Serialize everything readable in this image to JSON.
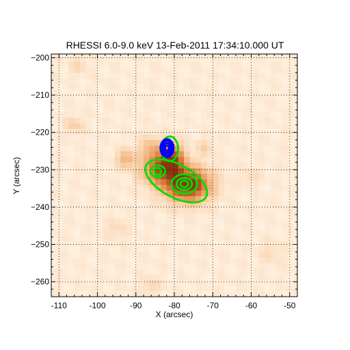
{
  "chart_data": {
    "type": "heatmap",
    "title": "RHESSI 6.0-9.0 keV 13-Feb-2011 17:34:10.000 UT",
    "xlabel": "X (arcsec)",
    "ylabel": "Y (arcsec)",
    "xlim": [
      -112,
      -48
    ],
    "ylim": [
      -264,
      -199
    ],
    "xticks": [
      -110,
      -100,
      -90,
      -80,
      -70,
      -60,
      -50
    ],
    "yticks": [
      -200,
      -210,
      -220,
      -230,
      -240,
      -250,
      -260
    ],
    "grid": true,
    "colormap": [
      "#fff3e4",
      "#f7c495",
      "#d97a38",
      "#8a3410"
    ],
    "image_sources": [
      {
        "x": -76.5,
        "y": -234.0,
        "sx": 4.0,
        "sy": 3.0,
        "amp": 1.0
      },
      {
        "x": -83.0,
        "y": -229.5,
        "sx": 3.5,
        "sy": 3.0,
        "amp": 0.75
      },
      {
        "x": -80.5,
        "y": -226.5,
        "sx": 2.0,
        "sy": 2.5,
        "amp": 0.55
      },
      {
        "x": -92.5,
        "y": -227.0,
        "sx": 1.6,
        "sy": 1.6,
        "amp": 0.35
      },
      {
        "x": -106.0,
        "y": -218.0,
        "sx": 1.5,
        "sy": 1.5,
        "amp": 0.18
      },
      {
        "x": -86.0,
        "y": -224.0,
        "sx": 2.0,
        "sy": 2.0,
        "amp": 0.25
      },
      {
        "x": -72.0,
        "y": -224.0,
        "sx": 1.5,
        "sy": 1.5,
        "amp": 0.15
      },
      {
        "x": -105.0,
        "y": -202.0,
        "sx": 1.5,
        "sy": 1.5,
        "amp": 0.12
      },
      {
        "x": -95.0,
        "y": -246.0,
        "sx": 2.0,
        "sy": 2.0,
        "amp": 0.1
      },
      {
        "x": -86.0,
        "y": -261.0,
        "sx": 1.5,
        "sy": 1.5,
        "amp": 0.14
      },
      {
        "x": -60.0,
        "y": -232.0,
        "sx": 1.5,
        "sy": 1.5,
        "amp": 0.1
      },
      {
        "x": -55.0,
        "y": -252.0,
        "sx": 2.0,
        "sy": 2.0,
        "amp": 0.1
      }
    ],
    "contours": [
      {
        "color": "#00dd00",
        "center": [
          -81.2,
          -224.4
        ],
        "radii": [
          [
            2.2,
            3.3
          ]
        ]
      },
      {
        "color": "#00dd00",
        "center": [
          -84.3,
          -230.4
        ],
        "radii": [
          [
            0.9,
            0.9
          ],
          [
            1.9,
            1.6
          ]
        ]
      },
      {
        "color": "#00dd00",
        "center": [
          -77.4,
          -233.8
        ],
        "radii": [
          [
            1.0,
            0.9
          ],
          [
            2.0,
            1.6
          ],
          [
            3.3,
            2.6
          ]
        ]
      },
      {
        "color": "#00dd00",
        "center": [
          -79.5,
          -233.0
        ],
        "radii": [
          [
            8.8,
            4.4
          ]
        ]
      },
      {
        "color": "#0000ff",
        "center": [
          -81.9,
          -224.2
        ],
        "radii": [
          [
            0.5,
            0.7
          ],
          [
            0.9,
            1.3
          ],
          [
            1.3,
            1.9
          ],
          [
            1.7,
            2.4
          ]
        ]
      }
    ]
  }
}
